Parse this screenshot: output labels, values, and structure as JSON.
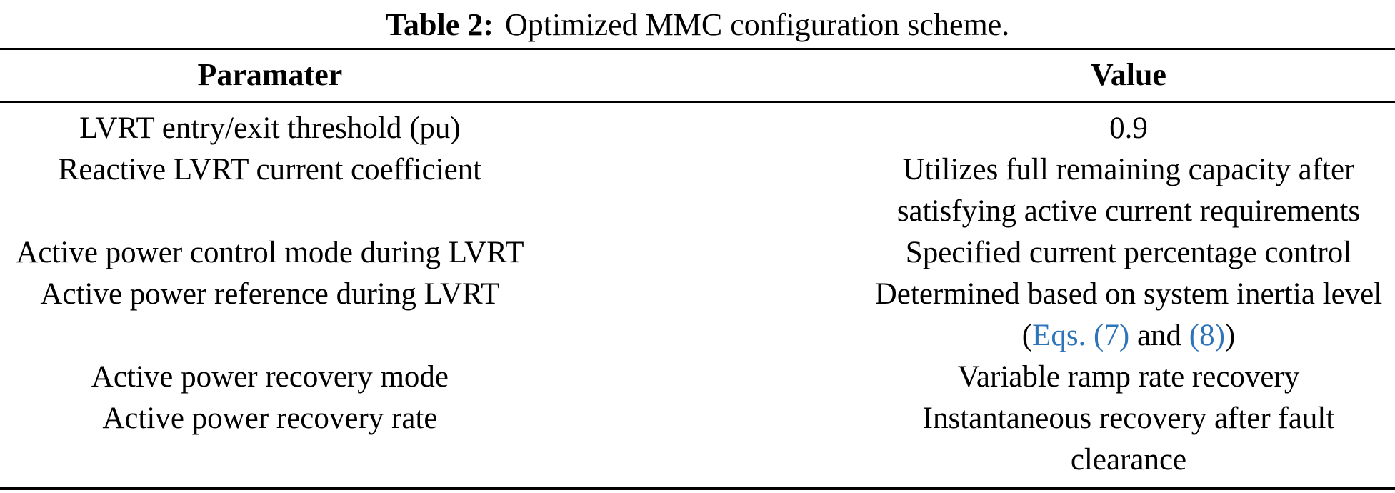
{
  "caption": {
    "label": "Table 2:",
    "text": "Optimized MMC configuration scheme."
  },
  "colors": {
    "text": "#000000",
    "rule": "#000000",
    "link": "#2E74B9"
  },
  "table": {
    "col_headers": [
      "Paramater",
      "Value"
    ],
    "rows": [
      {
        "parameter": "LVRT entry/exit threshold (pu)",
        "value": [
          {
            "text": "0.9"
          }
        ]
      },
      {
        "parameter": "Reactive LVRT current coefficient",
        "value": [
          {
            "text": "Utilizes full remaining capacity after satisfying active current requirements"
          }
        ]
      },
      {
        "parameter": "Active power control mode during LVRT",
        "value": [
          {
            "text": "Specified current percentage control"
          }
        ]
      },
      {
        "parameter": "Active power reference during LVRT",
        "value": [
          {
            "text": "Determined based on system inertia level ("
          },
          {
            "text": "Eqs. (7)",
            "link": true
          },
          {
            "text": " and "
          },
          {
            "text": "(8)",
            "link": true
          },
          {
            "text": ")"
          }
        ]
      },
      {
        "parameter": "Active power recovery mode",
        "value": [
          {
            "text": "Variable ramp rate recovery"
          }
        ]
      },
      {
        "parameter": "Active power recovery rate",
        "value": [
          {
            "text": "Instantaneous recovery after fault clearance"
          }
        ]
      }
    ]
  }
}
